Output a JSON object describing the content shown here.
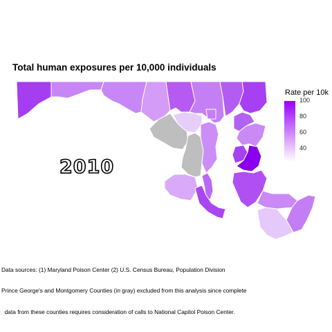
{
  "title": "Total human exposures per 10,000 individuals",
  "year": "2010",
  "legend": {
    "title": "Rate per 10k",
    "ticks": [
      "100",
      "80",
      "60",
      "40"
    ],
    "scale_min_color": "#ffffff",
    "scale_max_color": "#9900ff",
    "excluded_color": "#bebebe"
  },
  "sources": {
    "line1": "Data sources: (1) Maryland Poison Center (2) U.S. Census Bureau, Population Division",
    "line2": "Prince George's and Montgomery Counties (in gray) excluded from this analysis since complete",
    "line3": "  data from these counties requires consideration of calls to National Capitol Poison Center."
  }
}
